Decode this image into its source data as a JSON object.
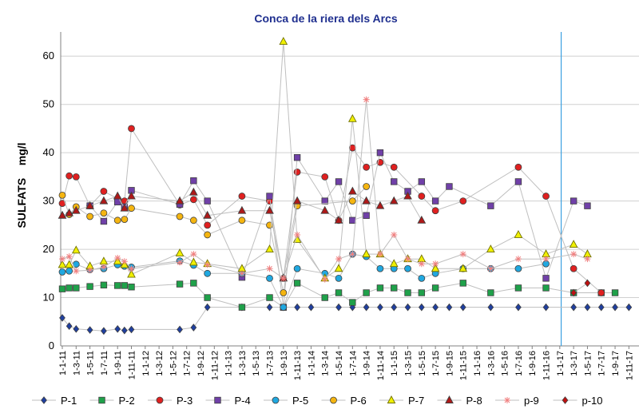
{
  "chart_data": {
    "type": "line",
    "title": "Conca de la riera dels Arcs",
    "xlabel": "",
    "ylabel": "SULFATS    mg/l",
    "ylim": [
      0,
      65
    ],
    "yticks": [
      "0",
      "10",
      "20",
      "30",
      "40",
      "50",
      "60"
    ],
    "grid": true,
    "legend_position": "bottom",
    "x_tick_labels": [
      "1-1-11",
      "1-3-11",
      "1-5-11",
      "1-7-11",
      "1-9-11",
      "1-11-11",
      "1-1-12",
      "1-3-12",
      "1-5-12",
      "1-7-12",
      "1-9-12",
      "1-11-12",
      "1-1-13",
      "1-3-13",
      "1-5-13",
      "1-7-13",
      "1-9-13",
      "1-11-13",
      "1-1-14",
      "1-3-14",
      "1-5-14",
      "1-7-14",
      "1-9-14",
      "1-11-14",
      "1-1-15",
      "1-3-15",
      "1-5-15",
      "1-7-15",
      "1-9-15",
      "1-11-15",
      "1-1-16",
      "1-3-16",
      "1-5-16",
      "1-7-16",
      "1-9-16",
      "1-11-16",
      "1-1-17",
      "1-3-17",
      "1-5-17",
      "1-7-17",
      "1-9-17",
      "1-11-17"
    ],
    "vertical_marker_x": 36.1,
    "series": [
      {
        "name": "P-1",
        "color": "#1f3fa0",
        "marker": "diamond",
        "points": [
          [
            0,
            5.8
          ],
          [
            0.5,
            4.1
          ],
          [
            1,
            3.5
          ],
          [
            2,
            3.3
          ],
          [
            3,
            3.1
          ],
          [
            4,
            3.5
          ],
          [
            4.5,
            3.2
          ],
          [
            5,
            3.4
          ],
          [
            8.5,
            3.4
          ],
          [
            9.5,
            3.8
          ],
          [
            10.5,
            8
          ],
          [
            13,
            8
          ],
          [
            15,
            8
          ],
          [
            16,
            8
          ],
          [
            17,
            8
          ],
          [
            18,
            8
          ],
          [
            20,
            8
          ],
          [
            21,
            8
          ],
          [
            22,
            8
          ],
          [
            23,
            8
          ],
          [
            24,
            8
          ],
          [
            25,
            8
          ],
          [
            26,
            8
          ],
          [
            27,
            8
          ],
          [
            28,
            8
          ],
          [
            29,
            8
          ],
          [
            31,
            8
          ],
          [
            33,
            8
          ],
          [
            35,
            8
          ],
          [
            37,
            8
          ],
          [
            38,
            8
          ],
          [
            39,
            8
          ],
          [
            40,
            8
          ],
          [
            41,
            8
          ]
        ]
      },
      {
        "name": "P-2",
        "color": "#1fa14a",
        "marker": "square",
        "points": [
          [
            0,
            11.8
          ],
          [
            0.5,
            12
          ],
          [
            1,
            12
          ],
          [
            2,
            12.3
          ],
          [
            3,
            12.6
          ],
          [
            4,
            12.5
          ],
          [
            4.5,
            12.5
          ],
          [
            5,
            12.2
          ],
          [
            8.5,
            12.8
          ],
          [
            9.5,
            13
          ],
          [
            10.5,
            10
          ],
          [
            13,
            8
          ],
          [
            15,
            10
          ],
          [
            16,
            8
          ],
          [
            17,
            13
          ],
          [
            19,
            10
          ],
          [
            20,
            11
          ],
          [
            21,
            9
          ],
          [
            22,
            11
          ],
          [
            23,
            12
          ],
          [
            24,
            12
          ],
          [
            25,
            11
          ],
          [
            26,
            11
          ],
          [
            27,
            12
          ],
          [
            29,
            13
          ],
          [
            31,
            11
          ],
          [
            33,
            12
          ],
          [
            35,
            12
          ],
          [
            37,
            11
          ],
          [
            39,
            11
          ],
          [
            40,
            11
          ]
        ]
      },
      {
        "name": "P-3",
        "color": "#e02020",
        "marker": "circle",
        "points": [
          [
            0,
            29.5
          ],
          [
            0.5,
            35.2
          ],
          [
            1,
            35
          ],
          [
            2,
            29
          ],
          [
            3,
            32
          ],
          [
            4,
            30.5
          ],
          [
            4.5,
            30
          ],
          [
            5,
            45
          ],
          [
            8.5,
            29.2
          ],
          [
            9.5,
            30.3
          ],
          [
            10.5,
            25
          ],
          [
            13,
            31
          ],
          [
            15,
            30
          ],
          [
            16,
            14
          ],
          [
            17,
            36
          ],
          [
            19,
            35
          ],
          [
            20,
            26
          ],
          [
            21,
            41
          ],
          [
            22,
            37
          ],
          [
            23,
            38
          ],
          [
            24,
            37
          ],
          [
            26,
            31
          ],
          [
            27,
            28
          ],
          [
            29,
            30
          ],
          [
            33,
            37
          ],
          [
            35,
            31
          ],
          [
            37,
            16
          ],
          [
            39,
            11
          ]
        ]
      },
      {
        "name": "P-4",
        "color": "#7040a8",
        "marker": "square",
        "points": [
          [
            2,
            29
          ],
          [
            3,
            25.8
          ],
          [
            4,
            29.8
          ],
          [
            4.5,
            28.8
          ],
          [
            5,
            32.2
          ],
          [
            8.5,
            29.3
          ],
          [
            9.5,
            34.2
          ],
          [
            10.5,
            30
          ],
          [
            13,
            14.2
          ],
          [
            15,
            31
          ],
          [
            16,
            8
          ],
          [
            17,
            39
          ],
          [
            19,
            30
          ],
          [
            20,
            34
          ],
          [
            21,
            26
          ],
          [
            22,
            27
          ],
          [
            23,
            40
          ],
          [
            24,
            34
          ],
          [
            25,
            32
          ],
          [
            26,
            34
          ],
          [
            27,
            30
          ],
          [
            28,
            33
          ],
          [
            31,
            29
          ],
          [
            33,
            34
          ],
          [
            35,
            14
          ],
          [
            37,
            30
          ],
          [
            38,
            29
          ]
        ]
      },
      {
        "name": "P-5",
        "color": "#20a8e0",
        "marker": "circle",
        "points": [
          [
            0,
            15.3
          ],
          [
            0.5,
            15.5
          ],
          [
            1,
            16.9
          ],
          [
            2,
            15.8
          ],
          [
            3,
            16
          ],
          [
            4,
            16.8
          ],
          [
            4.5,
            16.5
          ],
          [
            5,
            16.3
          ],
          [
            8.5,
            17.6
          ],
          [
            9.5,
            16.7
          ],
          [
            10.5,
            15
          ],
          [
            13,
            15
          ],
          [
            15,
            14
          ],
          [
            16,
            8
          ],
          [
            17,
            16
          ],
          [
            19,
            15
          ],
          [
            20,
            14
          ],
          [
            21,
            19
          ],
          [
            22,
            18.5
          ],
          [
            23,
            16
          ],
          [
            24,
            16
          ],
          [
            25,
            16
          ],
          [
            26,
            14
          ],
          [
            27,
            15
          ],
          [
            29,
            16
          ],
          [
            31,
            16
          ],
          [
            33,
            16
          ],
          [
            35,
            17
          ]
        ]
      },
      {
        "name": "P-6",
        "color": "#f5b510",
        "marker": "circle",
        "points": [
          [
            0,
            31.2
          ],
          [
            0.5,
            27.2
          ],
          [
            1,
            28.8
          ],
          [
            2,
            26.8
          ],
          [
            3,
            27.5
          ],
          [
            4,
            26
          ],
          [
            4.5,
            26.2
          ],
          [
            5,
            28.5
          ],
          [
            8.5,
            26.8
          ],
          [
            9.5,
            26
          ],
          [
            10.5,
            23
          ],
          [
            13,
            26
          ],
          [
            15,
            25
          ],
          [
            16,
            11
          ],
          [
            17,
            29
          ],
          [
            21,
            30
          ],
          [
            22,
            33
          ]
        ]
      },
      {
        "name": "P-7",
        "color": "#f0f000",
        "stroke": "#707000",
        "marker": "triangle",
        "points": [
          [
            0,
            16.8
          ],
          [
            0.5,
            16.8
          ],
          [
            1,
            19.8
          ],
          [
            2,
            16.5
          ],
          [
            3,
            17.5
          ],
          [
            4,
            17.5
          ],
          [
            4.5,
            16.8
          ],
          [
            5,
            14.8
          ],
          [
            8.5,
            19.2
          ],
          [
            9.5,
            17.3
          ],
          [
            10.5,
            17
          ],
          [
            13,
            16
          ],
          [
            15,
            20
          ],
          [
            16,
            63
          ],
          [
            17,
            22
          ],
          [
            19,
            14
          ],
          [
            20,
            16
          ],
          [
            21,
            47
          ],
          [
            22,
            19
          ],
          [
            23,
            19
          ],
          [
            24,
            17
          ],
          [
            25,
            18
          ],
          [
            26,
            18
          ],
          [
            27,
            16
          ],
          [
            29,
            16
          ],
          [
            31,
            20
          ],
          [
            33,
            23
          ],
          [
            35,
            19
          ],
          [
            37,
            21
          ],
          [
            38,
            19
          ]
        ]
      },
      {
        "name": "P-8",
        "color": "#b01818",
        "marker": "triangle",
        "points": [
          [
            0,
            27
          ],
          [
            0.5,
            27.5
          ],
          [
            1,
            28
          ],
          [
            2,
            29
          ],
          [
            3,
            30
          ],
          [
            4,
            31
          ],
          [
            4.5,
            28.5
          ],
          [
            5,
            31
          ],
          [
            8.5,
            30
          ],
          [
            9.5,
            31.8
          ],
          [
            10.5,
            27
          ],
          [
            13,
            28
          ],
          [
            15,
            28
          ],
          [
            16,
            14
          ],
          [
            17,
            30
          ],
          [
            19,
            28
          ],
          [
            20,
            26
          ],
          [
            21,
            32
          ],
          [
            22,
            30
          ],
          [
            23,
            29
          ],
          [
            24,
            30
          ],
          [
            25,
            31
          ],
          [
            26,
            26
          ]
        ]
      },
      {
        "name": "p-9",
        "color": "#f08080",
        "marker": "star",
        "points": [
          [
            0,
            18
          ],
          [
            0.5,
            18.5
          ],
          [
            1,
            15.5
          ],
          [
            2,
            15.7
          ],
          [
            3,
            16.3
          ],
          [
            4,
            18.2
          ],
          [
            4.5,
            17.5
          ],
          [
            5,
            16
          ],
          [
            8.5,
            17.3
          ],
          [
            9.5,
            19
          ],
          [
            10.5,
            16.8
          ],
          [
            13,
            15
          ],
          [
            15,
            16
          ],
          [
            16,
            14
          ],
          [
            17,
            23
          ],
          [
            19,
            13.8
          ],
          [
            20,
            18
          ],
          [
            21,
            19
          ],
          [
            22,
            51
          ],
          [
            23,
            19
          ],
          [
            24,
            23
          ],
          [
            25,
            18
          ],
          [
            26,
            17
          ],
          [
            27,
            17
          ],
          [
            29,
            19
          ],
          [
            31,
            16
          ],
          [
            33,
            18
          ],
          [
            35,
            18
          ],
          [
            37,
            19
          ],
          [
            38,
            18
          ]
        ]
      },
      {
        "name": "p-10",
        "color": "#c01010",
        "marker": "diamond",
        "points": [
          [
            37,
            11
          ],
          [
            38,
            13
          ]
        ]
      }
    ]
  }
}
